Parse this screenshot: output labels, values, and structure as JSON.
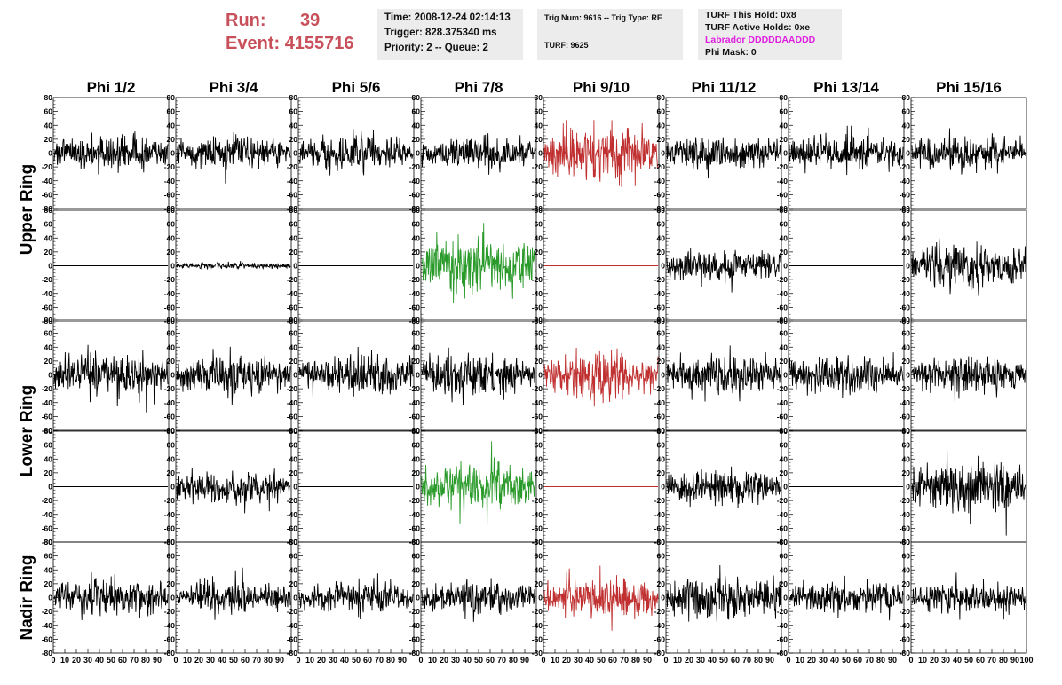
{
  "header": {
    "run_label": "Run:",
    "run_value": "39",
    "event_label": "Event:",
    "event_value": "4155716",
    "time": "Time: 2008-12-24 02:14:13",
    "trigger": "Trigger: 828.375340 ms",
    "priority": "Priority: 2 -- Queue: 2",
    "trig_num": "Trig Num: 9616 -- Trig Type: RF",
    "turf": "TURF: 9625",
    "turf_this_hold": "TURF This Hold: 0x8",
    "turf_active_holds": "TURF Active Holds: 0xe",
    "labrador": "Labrador DDDDDAADDD",
    "phi_mask": "Phi Mask: 0"
  },
  "colors": {
    "header_red": "#c8505a",
    "box_bg": "#ececec",
    "labrador_magenta": "#e020e0",
    "trace_default": "#000000",
    "trace_red": "#c03030",
    "trace_green": "#2a9a2a"
  },
  "chart_data": {
    "type": "line",
    "title": "",
    "phi_titles": [
      "Phi 1/2",
      "Phi 3/4",
      "Phi 5/6",
      "Phi 7/8",
      "Phi 9/10",
      "Phi 11/12",
      "Phi 13/14",
      "Phi 15/16"
    ],
    "ring_titles": [
      {
        "label": "Upper Ring",
        "rows": [
          0,
          1
        ]
      },
      {
        "label": "Lower Ring",
        "rows": [
          2,
          3
        ]
      },
      {
        "label": "Nadir Ring",
        "rows": [
          4,
          4
        ]
      }
    ],
    "ylim": [
      -80,
      80
    ],
    "yticks": [
      -80,
      -60,
      -40,
      -20,
      0,
      20,
      40,
      60,
      80
    ],
    "xlim": [
      0,
      100
    ],
    "xticks": [
      0,
      10,
      20,
      30,
      40,
      50,
      60,
      70,
      80,
      90
    ],
    "xticks_last_column": [
      0,
      10,
      20,
      30,
      40,
      50,
      60,
      70,
      80,
      90,
      100
    ],
    "grid": false,
    "samples_per_trace": 260,
    "panels": [
      [
        {
          "color": "#000000",
          "amplitude_rms": 11,
          "flat": false,
          "seed": 101
        },
        {
          "color": "#000000",
          "amplitude_rms": 10,
          "flat": false,
          "seed": 102
        },
        {
          "color": "#000000",
          "amplitude_rms": 11,
          "flat": false,
          "seed": 103
        },
        {
          "color": "#000000",
          "amplitude_rms": 10,
          "flat": false,
          "seed": 104
        },
        {
          "color": "#c03030",
          "amplitude_rms": 18,
          "flat": false,
          "seed": 105
        },
        {
          "color": "#000000",
          "amplitude_rms": 10,
          "flat": false,
          "seed": 106
        },
        {
          "color": "#000000",
          "amplitude_rms": 11,
          "flat": false,
          "seed": 107
        },
        {
          "color": "#000000",
          "amplitude_rms": 11,
          "flat": false,
          "seed": 108
        }
      ],
      [
        {
          "color": "#000000",
          "amplitude_rms": 0,
          "flat": true,
          "seed": 201
        },
        {
          "color": "#000000",
          "amplitude_rms": 2,
          "flat": false,
          "seed": 202
        },
        {
          "color": "#000000",
          "amplitude_rms": 0,
          "flat": true,
          "seed": 203
        },
        {
          "color": "#2a9a2a",
          "amplitude_rms": 18,
          "flat": false,
          "seed": 204
        },
        {
          "color": "#c03030",
          "amplitude_rms": 0,
          "flat": true,
          "seed": 205
        },
        {
          "color": "#000000",
          "amplitude_rms": 10,
          "flat": false,
          "seed": 206
        },
        {
          "color": "#000000",
          "amplitude_rms": 0,
          "flat": true,
          "seed": 207
        },
        {
          "color": "#000000",
          "amplitude_rms": 14,
          "flat": false,
          "seed": 208
        }
      ],
      [
        {
          "color": "#000000",
          "amplitude_rms": 14,
          "flat": false,
          "seed": 301
        },
        {
          "color": "#000000",
          "amplitude_rms": 12,
          "flat": false,
          "seed": 302
        },
        {
          "color": "#000000",
          "amplitude_rms": 12,
          "flat": false,
          "seed": 303
        },
        {
          "color": "#000000",
          "amplitude_rms": 13,
          "flat": false,
          "seed": 304
        },
        {
          "color": "#c03030",
          "amplitude_rms": 15,
          "flat": false,
          "seed": 305
        },
        {
          "color": "#000000",
          "amplitude_rms": 12,
          "flat": false,
          "seed": 306
        },
        {
          "color": "#000000",
          "amplitude_rms": 12,
          "flat": false,
          "seed": 307
        },
        {
          "color": "#000000",
          "amplitude_rms": 12,
          "flat": false,
          "seed": 308
        }
      ],
      [
        {
          "color": "#000000",
          "amplitude_rms": 0,
          "flat": true,
          "seed": 401
        },
        {
          "color": "#000000",
          "amplitude_rms": 11,
          "flat": false,
          "seed": 402
        },
        {
          "color": "#000000",
          "amplitude_rms": 0,
          "flat": true,
          "seed": 403
        },
        {
          "color": "#2a9a2a",
          "amplitude_rms": 16,
          "flat": false,
          "seed": 404
        },
        {
          "color": "#c03030",
          "amplitude_rms": 0,
          "flat": true,
          "seed": 405
        },
        {
          "color": "#000000",
          "amplitude_rms": 11,
          "flat": false,
          "seed": 406
        },
        {
          "color": "#000000",
          "amplitude_rms": 0,
          "flat": true,
          "seed": 407
        },
        {
          "color": "#000000",
          "amplitude_rms": 16,
          "flat": false,
          "seed": 408
        }
      ],
      [
        {
          "color": "#000000",
          "amplitude_rms": 12,
          "flat": false,
          "seed": 501
        },
        {
          "color": "#000000",
          "amplitude_rms": 10,
          "flat": false,
          "seed": 502
        },
        {
          "color": "#000000",
          "amplitude_rms": 10,
          "flat": false,
          "seed": 503
        },
        {
          "color": "#000000",
          "amplitude_rms": 10,
          "flat": false,
          "seed": 504
        },
        {
          "color": "#c03030",
          "amplitude_rms": 13,
          "flat": false,
          "seed": 505
        },
        {
          "color": "#000000",
          "amplitude_rms": 14,
          "flat": false,
          "seed": 506
        },
        {
          "color": "#000000",
          "amplitude_rms": 11,
          "flat": false,
          "seed": 507
        },
        {
          "color": "#000000",
          "amplitude_rms": 11,
          "flat": false,
          "seed": 508
        }
      ]
    ]
  }
}
